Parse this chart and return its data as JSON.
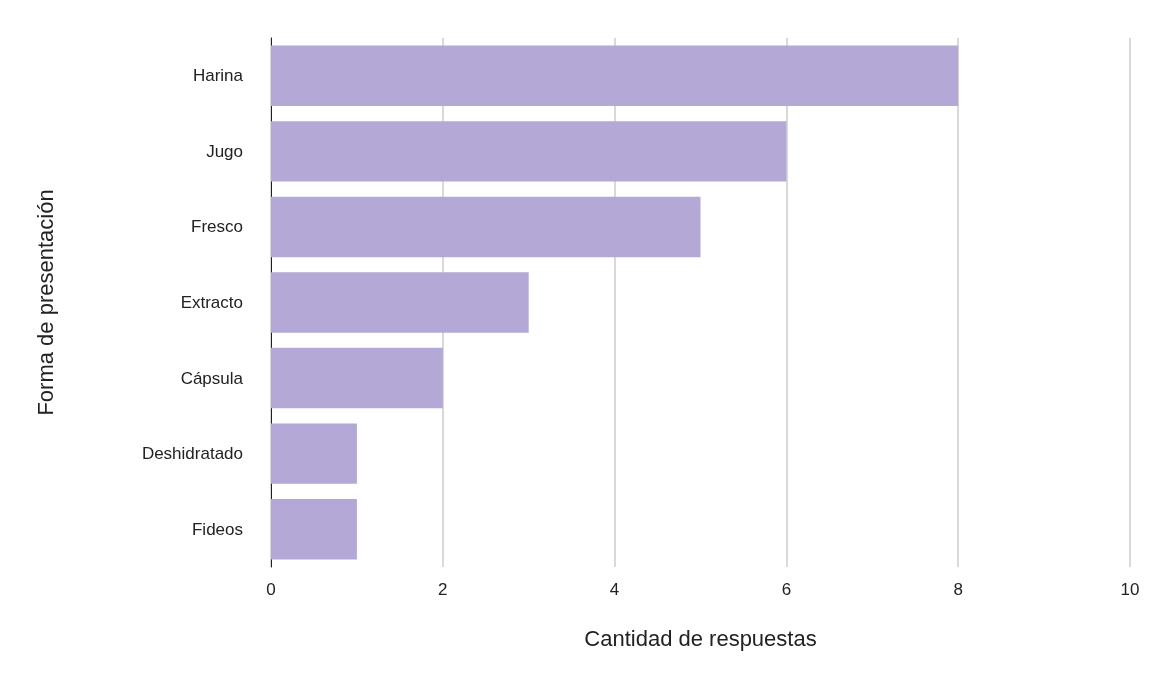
{
  "chart_data": {
    "type": "bar",
    "orientation": "horizontal",
    "xlabel": "Cantidad de respuestas",
    "ylabel": "Forma de presentación",
    "categories": [
      "Harina",
      "Jugo",
      "Fresco",
      "Extracto",
      "Cápsula",
      "Deshidratado",
      "Fideos"
    ],
    "values": [
      8,
      6,
      5,
      3,
      2,
      1,
      1
    ],
    "color": "#b3a8d6",
    "xlim": [
      0,
      10
    ],
    "xticks": [
      0,
      2,
      4,
      6,
      8,
      10
    ],
    "grid": "x"
  }
}
